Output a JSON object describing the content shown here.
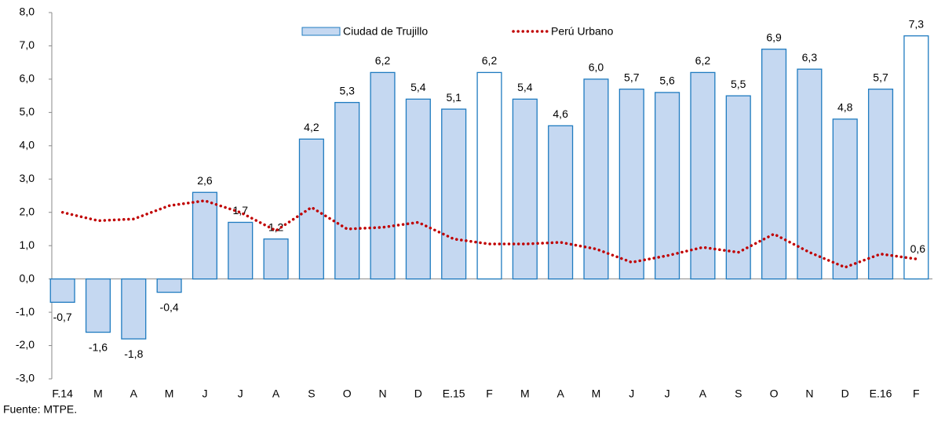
{
  "chart_data": {
    "type": "bar",
    "categories": [
      "F.14",
      "M",
      "A",
      "M",
      "J",
      "J",
      "A",
      "S",
      "O",
      "N",
      "D",
      "E.15",
      "F",
      "M",
      "A",
      "M",
      "J",
      "J",
      "A",
      "S",
      "O",
      "N",
      "D",
      "E.16",
      "F"
    ],
    "series": [
      {
        "name": "Ciudad de Trujillo",
        "type": "bar",
        "color": "#c5d8f1",
        "stroke": "#1f7bc0",
        "colors": [
          "#c5d8f1",
          "#c5d8f1",
          "#c5d8f1",
          "#c5d8f1",
          "#c5d8f1",
          "#c5d8f1",
          "#c5d8f1",
          "#c5d8f1",
          "#c5d8f1",
          "#c5d8f1",
          "#c5d8f1",
          "#c5d8f1",
          "#ffffff",
          "#c5d8f1",
          "#c5d8f1",
          "#c5d8f1",
          "#c5d8f1",
          "#c5d8f1",
          "#c5d8f1",
          "#c5d8f1",
          "#c5d8f1",
          "#c5d8f1",
          "#c5d8f1",
          "#c5d8f1",
          "#ffffff"
        ],
        "values": [
          -0.7,
          -1.6,
          -1.8,
          -0.4,
          2.6,
          1.7,
          1.2,
          4.2,
          5.3,
          6.2,
          5.4,
          5.1,
          6.2,
          5.4,
          4.6,
          6.0,
          5.7,
          5.6,
          6.2,
          5.5,
          6.9,
          6.3,
          4.8,
          5.7,
          7.3
        ],
        "value_labels": [
          "-0,7",
          "-1,6",
          "-1,8",
          "-0,4",
          "2,6",
          "1,7",
          "1,2",
          "4,2",
          "5,3",
          "6,2",
          "5,4",
          "5,1",
          "6,2",
          "5,4",
          "4,6",
          "6,0",
          "5,7",
          "5,6",
          "6,2",
          "5,5",
          "6,9",
          "6,3",
          "4,8",
          "5,7",
          "7,3"
        ]
      },
      {
        "name": "Perú Urbano",
        "type": "line",
        "color": "#c00000",
        "values": [
          2.0,
          1.75,
          1.8,
          2.2,
          2.35,
          2.0,
          1.45,
          2.15,
          1.5,
          1.55,
          1.7,
          1.2,
          1.05,
          1.05,
          1.1,
          0.9,
          0.5,
          0.7,
          0.95,
          0.8,
          1.35,
          0.8,
          0.35,
          0.75,
          0.6
        ],
        "value_labels": [
          null,
          null,
          null,
          null,
          null,
          null,
          null,
          null,
          null,
          null,
          null,
          null,
          null,
          null,
          null,
          null,
          null,
          null,
          null,
          null,
          null,
          null,
          null,
          null,
          "0,6"
        ]
      }
    ],
    "ylim": [
      -3,
      8
    ],
    "yticks": [
      {
        "value": -3,
        "label": "-3,0"
      },
      {
        "value": -2,
        "label": "-2,0"
      },
      {
        "value": -1,
        "label": "-1,0"
      },
      {
        "value": 0,
        "label": "0,0"
      },
      {
        "value": 1,
        "label": "1,0"
      },
      {
        "value": 2,
        "label": "2,0"
      },
      {
        "value": 3,
        "label": "3,0"
      },
      {
        "value": 4,
        "label": "4,0"
      },
      {
        "value": 5,
        "label": "5,0"
      },
      {
        "value": 6,
        "label": "6,0"
      },
      {
        "value": 7,
        "label": "7,0"
      },
      {
        "value": 8,
        "label": "8,0"
      }
    ],
    "legend": "top",
    "note": "Fuente: MTPE."
  }
}
